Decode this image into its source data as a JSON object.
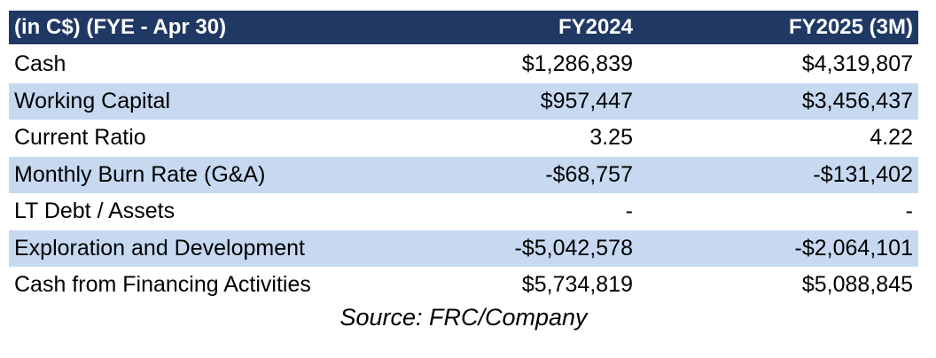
{
  "table": {
    "headers": [
      "(in C$)  (FYE - Apr 30)",
      "FY2024",
      "FY2025 (3M)"
    ],
    "rows": [
      {
        "label": "Cash",
        "fy2024": "$1,286,839",
        "fy2025": "$4,319,807",
        "shaded": false
      },
      {
        "label": "Working Capital",
        "fy2024": "$957,447",
        "fy2025": "$3,456,437",
        "shaded": true
      },
      {
        "label": "Current Ratio",
        "fy2024": "3.25",
        "fy2025": "4.22",
        "shaded": false
      },
      {
        "label": "Monthly Burn Rate (G&A)",
        "fy2024": "-$68,757",
        "fy2025": "-$131,402",
        "shaded": true
      },
      {
        "label": "LT Debt / Assets",
        "fy2024": "-",
        "fy2025": "-",
        "shaded": false
      },
      {
        "label": "Exploration and Development",
        "fy2024": "-$5,042,578",
        "fy2025": "-$2,064,101",
        "shaded": true
      },
      {
        "label": "Cash from Financing Activities",
        "fy2024": "$5,734,819",
        "fy2025": "$5,088,845",
        "shaded": false
      }
    ]
  },
  "source": "Source: FRC/Company",
  "colors": {
    "header_bg": "#1f3864",
    "header_text": "#ffffff",
    "row_shade": "#c6d9f1"
  }
}
